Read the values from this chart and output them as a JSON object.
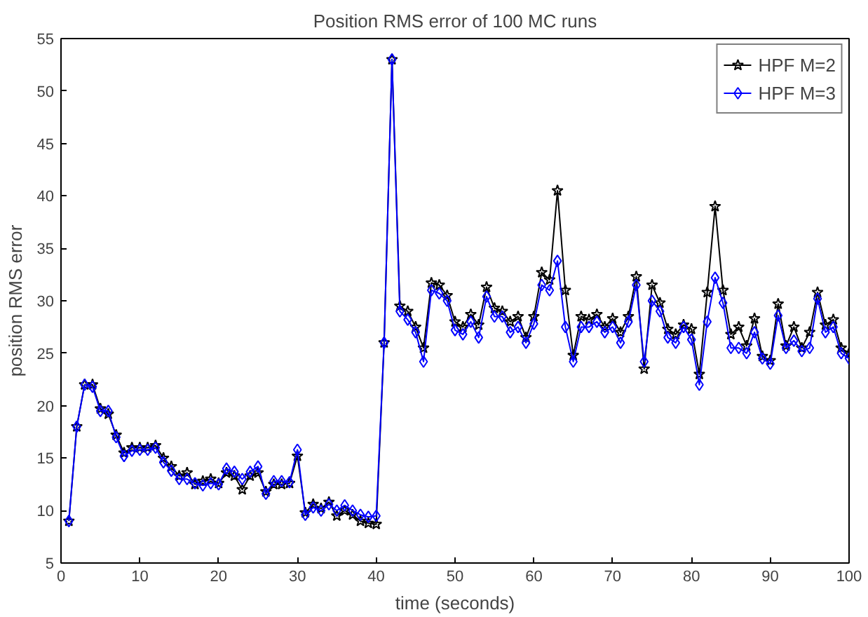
{
  "chart_data": {
    "type": "line",
    "title": "Position RMS error of 100 MC runs",
    "xlabel": "time (seconds)",
    "ylabel": "position RMS error",
    "x": [
      1,
      2,
      3,
      4,
      5,
      6,
      7,
      8,
      9,
      10,
      11,
      12,
      13,
      14,
      15,
      16,
      17,
      18,
      19,
      20,
      21,
      22,
      23,
      24,
      25,
      26,
      27,
      28,
      29,
      30,
      31,
      32,
      33,
      34,
      35,
      36,
      37,
      38,
      39,
      40,
      41,
      42,
      43,
      44,
      45,
      46,
      47,
      48,
      49,
      50,
      51,
      52,
      53,
      54,
      55,
      56,
      57,
      58,
      59,
      60,
      61,
      62,
      63,
      64,
      65,
      66,
      67,
      68,
      69,
      70,
      71,
      72,
      73,
      74,
      75,
      76,
      77,
      78,
      79,
      80,
      81,
      82,
      83,
      84,
      85,
      86,
      87,
      88,
      89,
      90,
      91,
      92,
      93,
      94,
      95,
      96,
      97,
      98,
      99,
      100
    ],
    "series": [
      {
        "name": "HPF M=2",
        "color": "#000000",
        "marker": "star",
        "values": [
          9,
          18,
          22,
          22,
          19.7,
          19.2,
          17.2,
          15.5,
          16,
          16,
          16,
          16.2,
          15,
          14.2,
          13.3,
          13.6,
          12.5,
          12.8,
          13,
          12.6,
          13.6,
          13.3,
          12,
          13.3,
          13.6,
          11.8,
          12.5,
          12.5,
          12.6,
          15.2,
          9.8,
          10.6,
          10.2,
          10.8,
          9.5,
          10,
          9.6,
          9,
          8.8,
          8.7,
          26,
          53,
          29.5,
          29,
          27.5,
          25.5,
          31.7,
          31.5,
          30.5,
          28,
          27.5,
          28.7,
          27.7,
          31.3,
          29.3,
          29,
          28,
          28.5,
          26.5,
          28.5,
          32.7,
          32,
          40.5,
          31,
          24.8,
          28.5,
          28.2,
          28.7,
          27.5,
          28.3,
          27,
          28.5,
          32.3,
          23.5,
          31.5,
          29.8,
          27.3,
          26.8,
          27.7,
          27.3,
          23,
          30.8,
          39,
          31,
          26.8,
          27.5,
          25.7,
          28.3,
          24.7,
          24.3,
          29.7,
          25.7,
          27.5,
          25.5,
          27,
          30.8,
          27.7,
          28.2,
          25.5,
          25
        ]
      },
      {
        "name": "HPF M=3",
        "color": "#0000ff",
        "marker": "diamond",
        "values": [
          9,
          18,
          22,
          21.8,
          19.5,
          19.5,
          17,
          15.2,
          15.7,
          15.8,
          15.8,
          16,
          14.6,
          13.8,
          13,
          13,
          12.6,
          12.4,
          12.6,
          12.5,
          14,
          13.7,
          13,
          13.7,
          14.2,
          11.6,
          12.8,
          12.8,
          12.7,
          15.8,
          9.6,
          10.3,
          10,
          10.6,
          10,
          10.5,
          10,
          9.6,
          9.4,
          9.5,
          26,
          53,
          29,
          28.2,
          27,
          24.2,
          31,
          30.7,
          30,
          27.2,
          26.8,
          28,
          26.5,
          30.4,
          28.5,
          28.5,
          27,
          27.5,
          26,
          27.8,
          31.5,
          31,
          33.8,
          27.5,
          24.2,
          27.5,
          27.5,
          28,
          27,
          27.5,
          26,
          28,
          31.5,
          24.2,
          30,
          29,
          26.5,
          26,
          27.5,
          26.3,
          22,
          28,
          32.2,
          29.8,
          25.5,
          25.5,
          25,
          27,
          24.5,
          24,
          28.6,
          25.5,
          26.2,
          25.2,
          25.5,
          30.2,
          27,
          27.5,
          25,
          24.5
        ]
      }
    ],
    "xlim": [
      0,
      100
    ],
    "xticks": [
      0,
      10,
      20,
      30,
      40,
      50,
      60,
      70,
      80,
      90,
      100
    ],
    "ylim": [
      5,
      55
    ],
    "yticks": [
      5,
      10,
      15,
      20,
      25,
      30,
      35,
      40,
      45,
      50,
      55
    ],
    "legend": "top right",
    "line_style": "solid"
  }
}
